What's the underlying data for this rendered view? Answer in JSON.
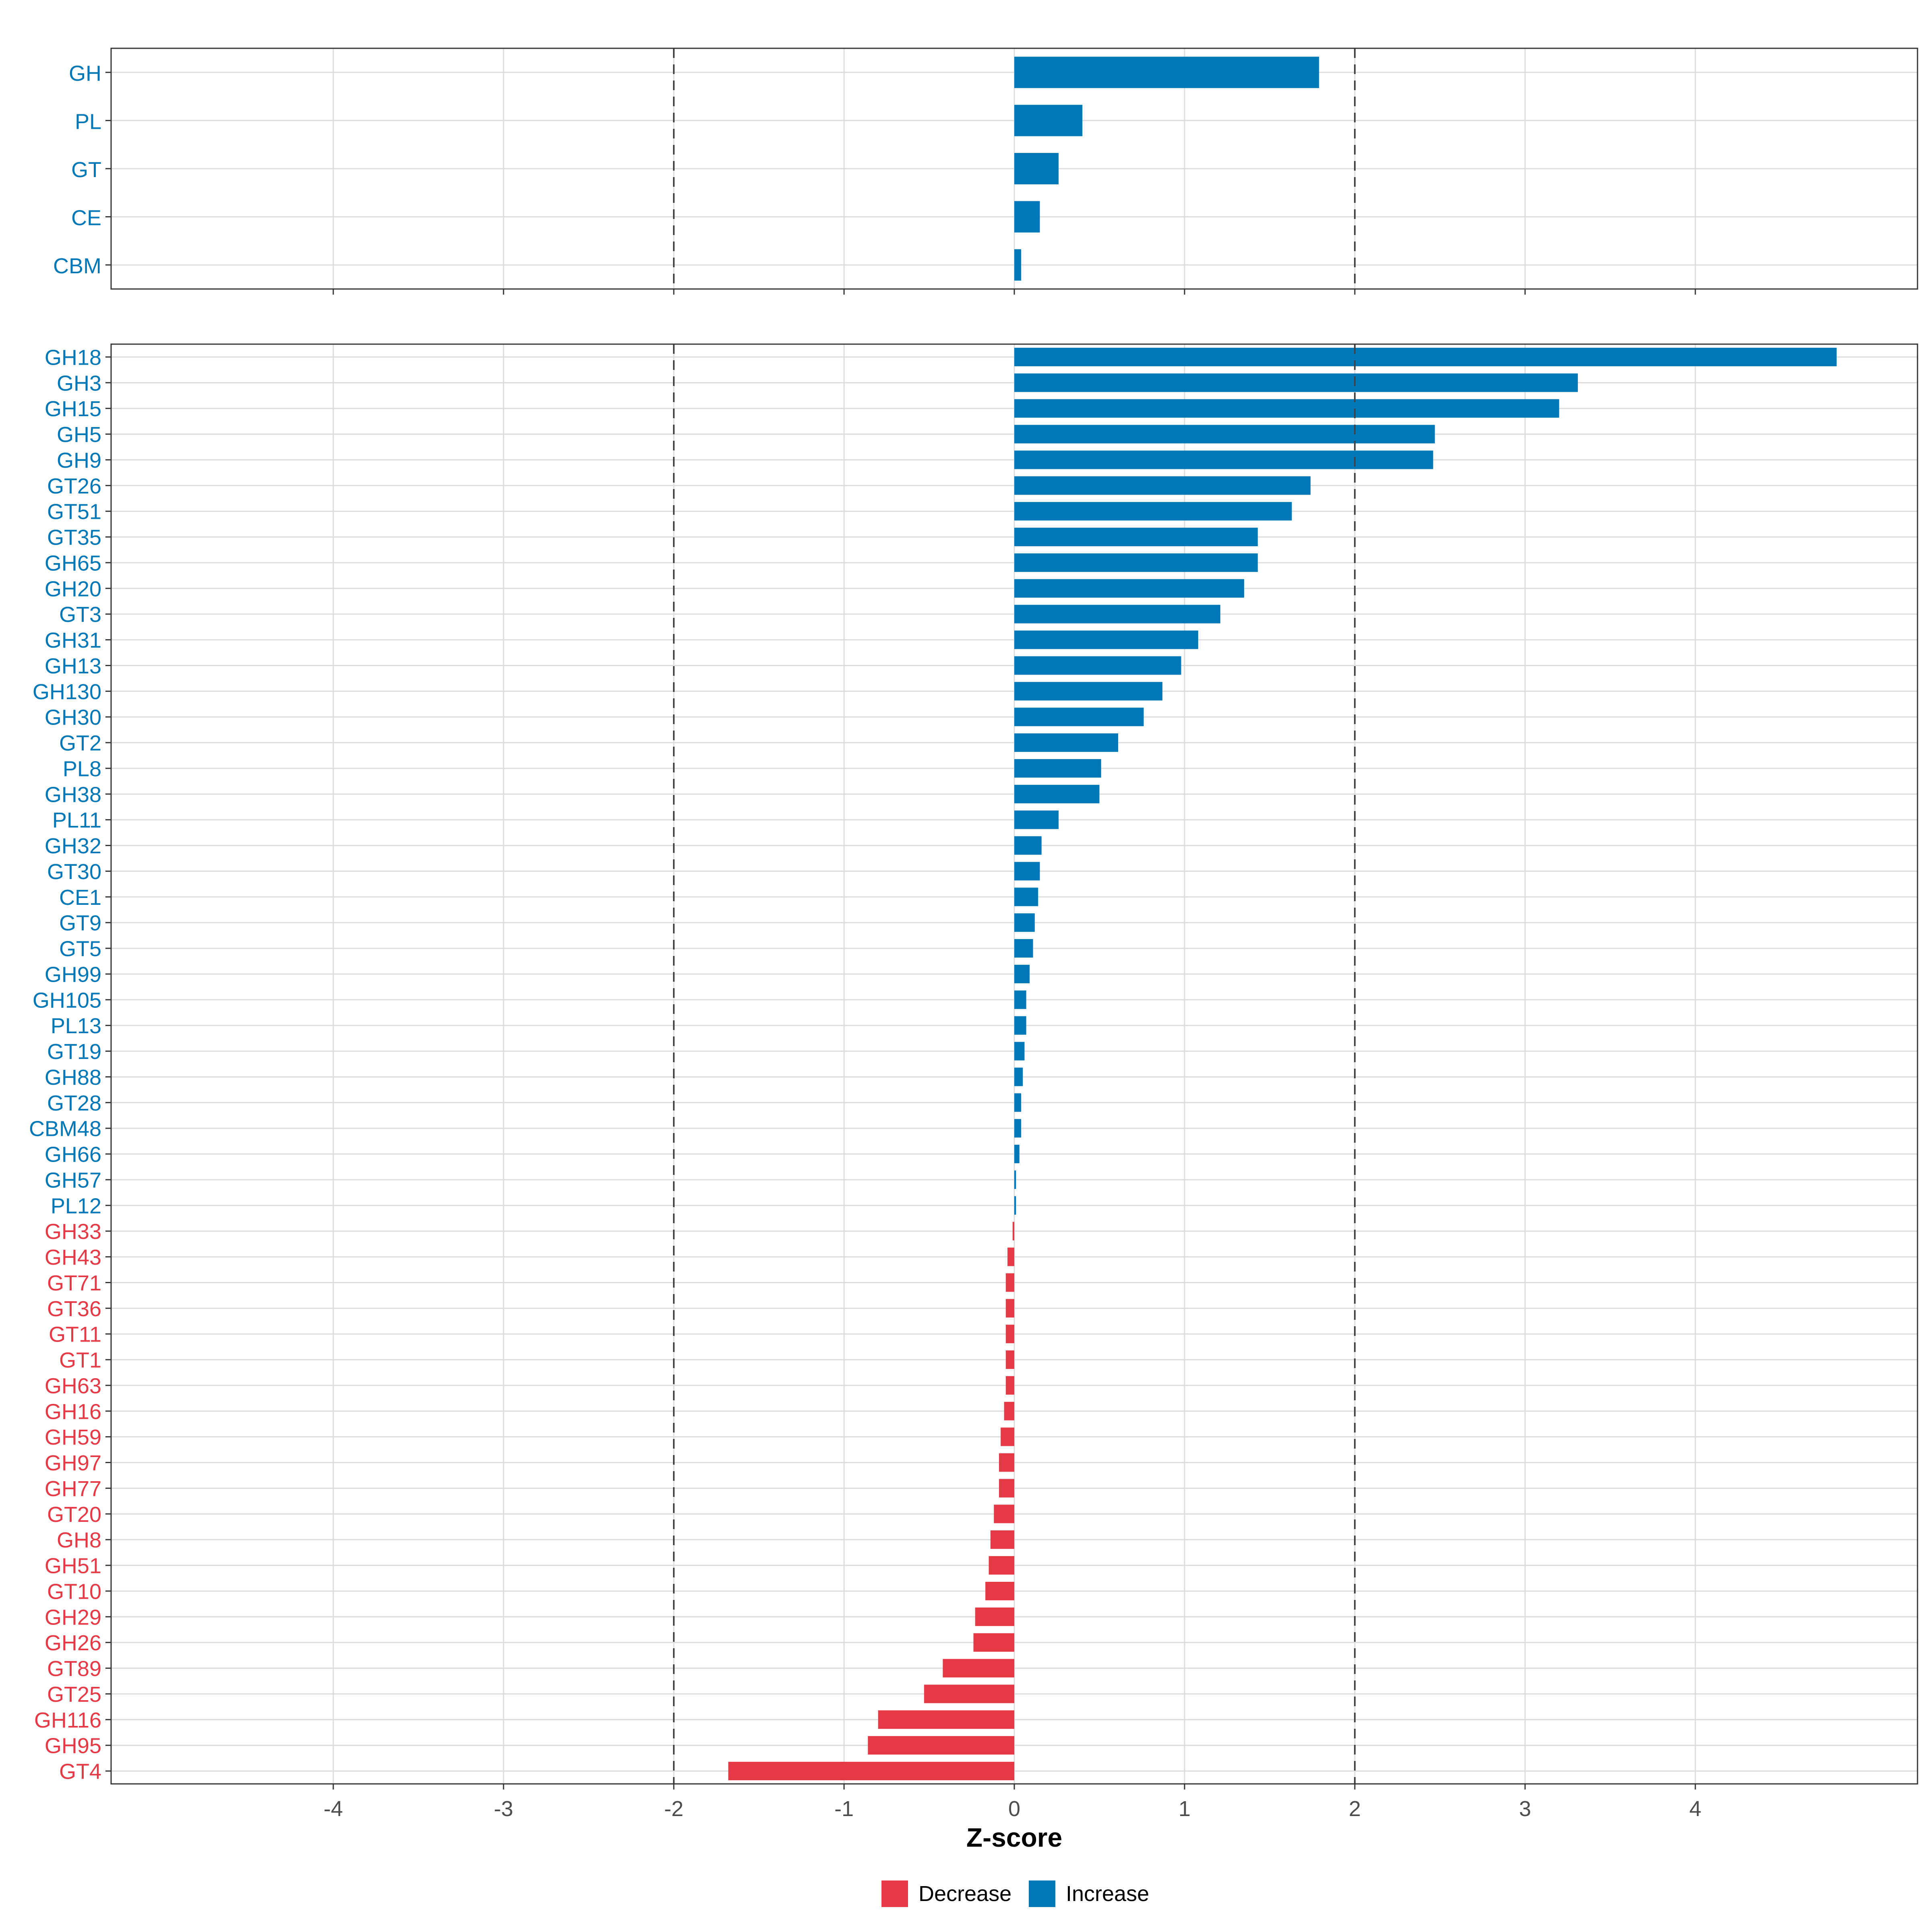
{
  "chart_data": [
    {
      "type": "bar",
      "orientation": "horizontal",
      "panel": "top",
      "xlabel": "",
      "xlim": [
        -5.3,
        5.3
      ],
      "reference_lines": [
        -2,
        2
      ],
      "categories": [
        "GH",
        "PL",
        "GT",
        "CE",
        "CBM"
      ],
      "values": [
        1.79,
        0.4,
        0.26,
        0.15,
        0.04
      ],
      "directions": [
        "Increase",
        "Increase",
        "Increase",
        "Increase",
        "Increase"
      ]
    },
    {
      "type": "bar",
      "orientation": "horizontal",
      "panel": "bottom",
      "xlabel": "Z-score",
      "xlim": [
        -5.3,
        5.3
      ],
      "xticks": [
        -4,
        -3,
        -2,
        -1,
        0,
        1,
        2,
        3,
        4
      ],
      "xtick_labels": [
        "-4",
        "-3",
        "-2",
        "-1",
        "0",
        "1",
        "2",
        "3",
        "4"
      ],
      "reference_lines": [
        -2,
        2
      ],
      "categories": [
        "GH18",
        "GH3",
        "GH15",
        "GH5",
        "GH9",
        "GT26",
        "GT51",
        "GT35",
        "GH65",
        "GH20",
        "GT3",
        "GH31",
        "GH13",
        "GH130",
        "GH30",
        "GT2",
        "PL8",
        "GH38",
        "PL11",
        "GH32",
        "GT30",
        "CE1",
        "GT9",
        "GT5",
        "GH99",
        "GH105",
        "PL13",
        "GT19",
        "GH88",
        "GT28",
        "CBM48",
        "GH66",
        "GH57",
        "PL12",
        "GH33",
        "GH43",
        "GT71",
        "GT36",
        "GT11",
        "GT1",
        "GH63",
        "GH16",
        "GH59",
        "GH97",
        "GH77",
        "GT20",
        "GH8",
        "GH51",
        "GT10",
        "GH29",
        "GH26",
        "GT89",
        "GT25",
        "GH116",
        "GH95",
        "GT4"
      ],
      "values": [
        4.83,
        3.31,
        3.2,
        2.47,
        2.46,
        1.74,
        1.63,
        1.43,
        1.43,
        1.35,
        1.21,
        1.08,
        0.98,
        0.87,
        0.76,
        0.61,
        0.51,
        0.5,
        0.26,
        0.16,
        0.15,
        0.14,
        0.12,
        0.11,
        0.09,
        0.07,
        0.07,
        0.06,
        0.05,
        0.04,
        0.04,
        0.03,
        0.01,
        0.01,
        -0.01,
        -0.04,
        -0.05,
        -0.05,
        -0.05,
        -0.05,
        -0.05,
        -0.06,
        -0.08,
        -0.09,
        -0.09,
        -0.12,
        -0.14,
        -0.15,
        -0.17,
        -0.23,
        -0.24,
        -0.42,
        -0.53,
        -0.8,
        -0.86,
        -1.68
      ],
      "directions": [
        "Increase",
        "Increase",
        "Increase",
        "Increase",
        "Increase",
        "Increase",
        "Increase",
        "Increase",
        "Increase",
        "Increase",
        "Increase",
        "Increase",
        "Increase",
        "Increase",
        "Increase",
        "Increase",
        "Increase",
        "Increase",
        "Increase",
        "Increase",
        "Increase",
        "Increase",
        "Increase",
        "Increase",
        "Increase",
        "Increase",
        "Increase",
        "Increase",
        "Increase",
        "Increase",
        "Increase",
        "Increase",
        "Increase",
        "Increase",
        "Decrease",
        "Decrease",
        "Decrease",
        "Decrease",
        "Decrease",
        "Decrease",
        "Decrease",
        "Decrease",
        "Decrease",
        "Decrease",
        "Decrease",
        "Decrease",
        "Decrease",
        "Decrease",
        "Decrease",
        "Decrease",
        "Decrease",
        "Decrease",
        "Decrease",
        "Decrease",
        "Decrease",
        "Decrease"
      ]
    }
  ],
  "legend": {
    "position": "bottom",
    "items": [
      {
        "label": "Decrease",
        "color": "#E63946"
      },
      {
        "label": "Increase",
        "color": "#0077B6"
      }
    ]
  },
  "colors": {
    "increase": "#0077B6",
    "decrease": "#E63946"
  }
}
